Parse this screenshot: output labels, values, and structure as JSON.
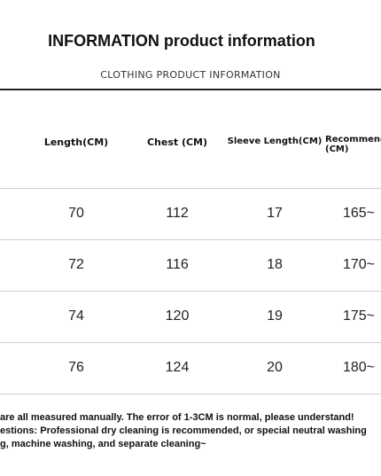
{
  "title": "INFORMATION product information",
  "subtitle": "CLOTHING PRODUCT INFORMATION",
  "table": {
    "header": [
      "Length(CM)",
      "Chest (CM)",
      "Sleeve Length(CM)",
      "Recommended (CM)"
    ],
    "rows": [
      [
        "70",
        "112",
        "17",
        "165~"
      ],
      [
        "72",
        "116",
        "18",
        "170~"
      ],
      [
        "74",
        "120",
        "19",
        "175~"
      ],
      [
        "76",
        "124",
        "20",
        "180~"
      ]
    ]
  },
  "notes": [
    "are all measured manually. The error of 1-3CM is normal, please understand!",
    "estions: Professional dry cleaning is recommended, or special neutral washing",
    "g, machine washing, and separate cleaning~"
  ]
}
